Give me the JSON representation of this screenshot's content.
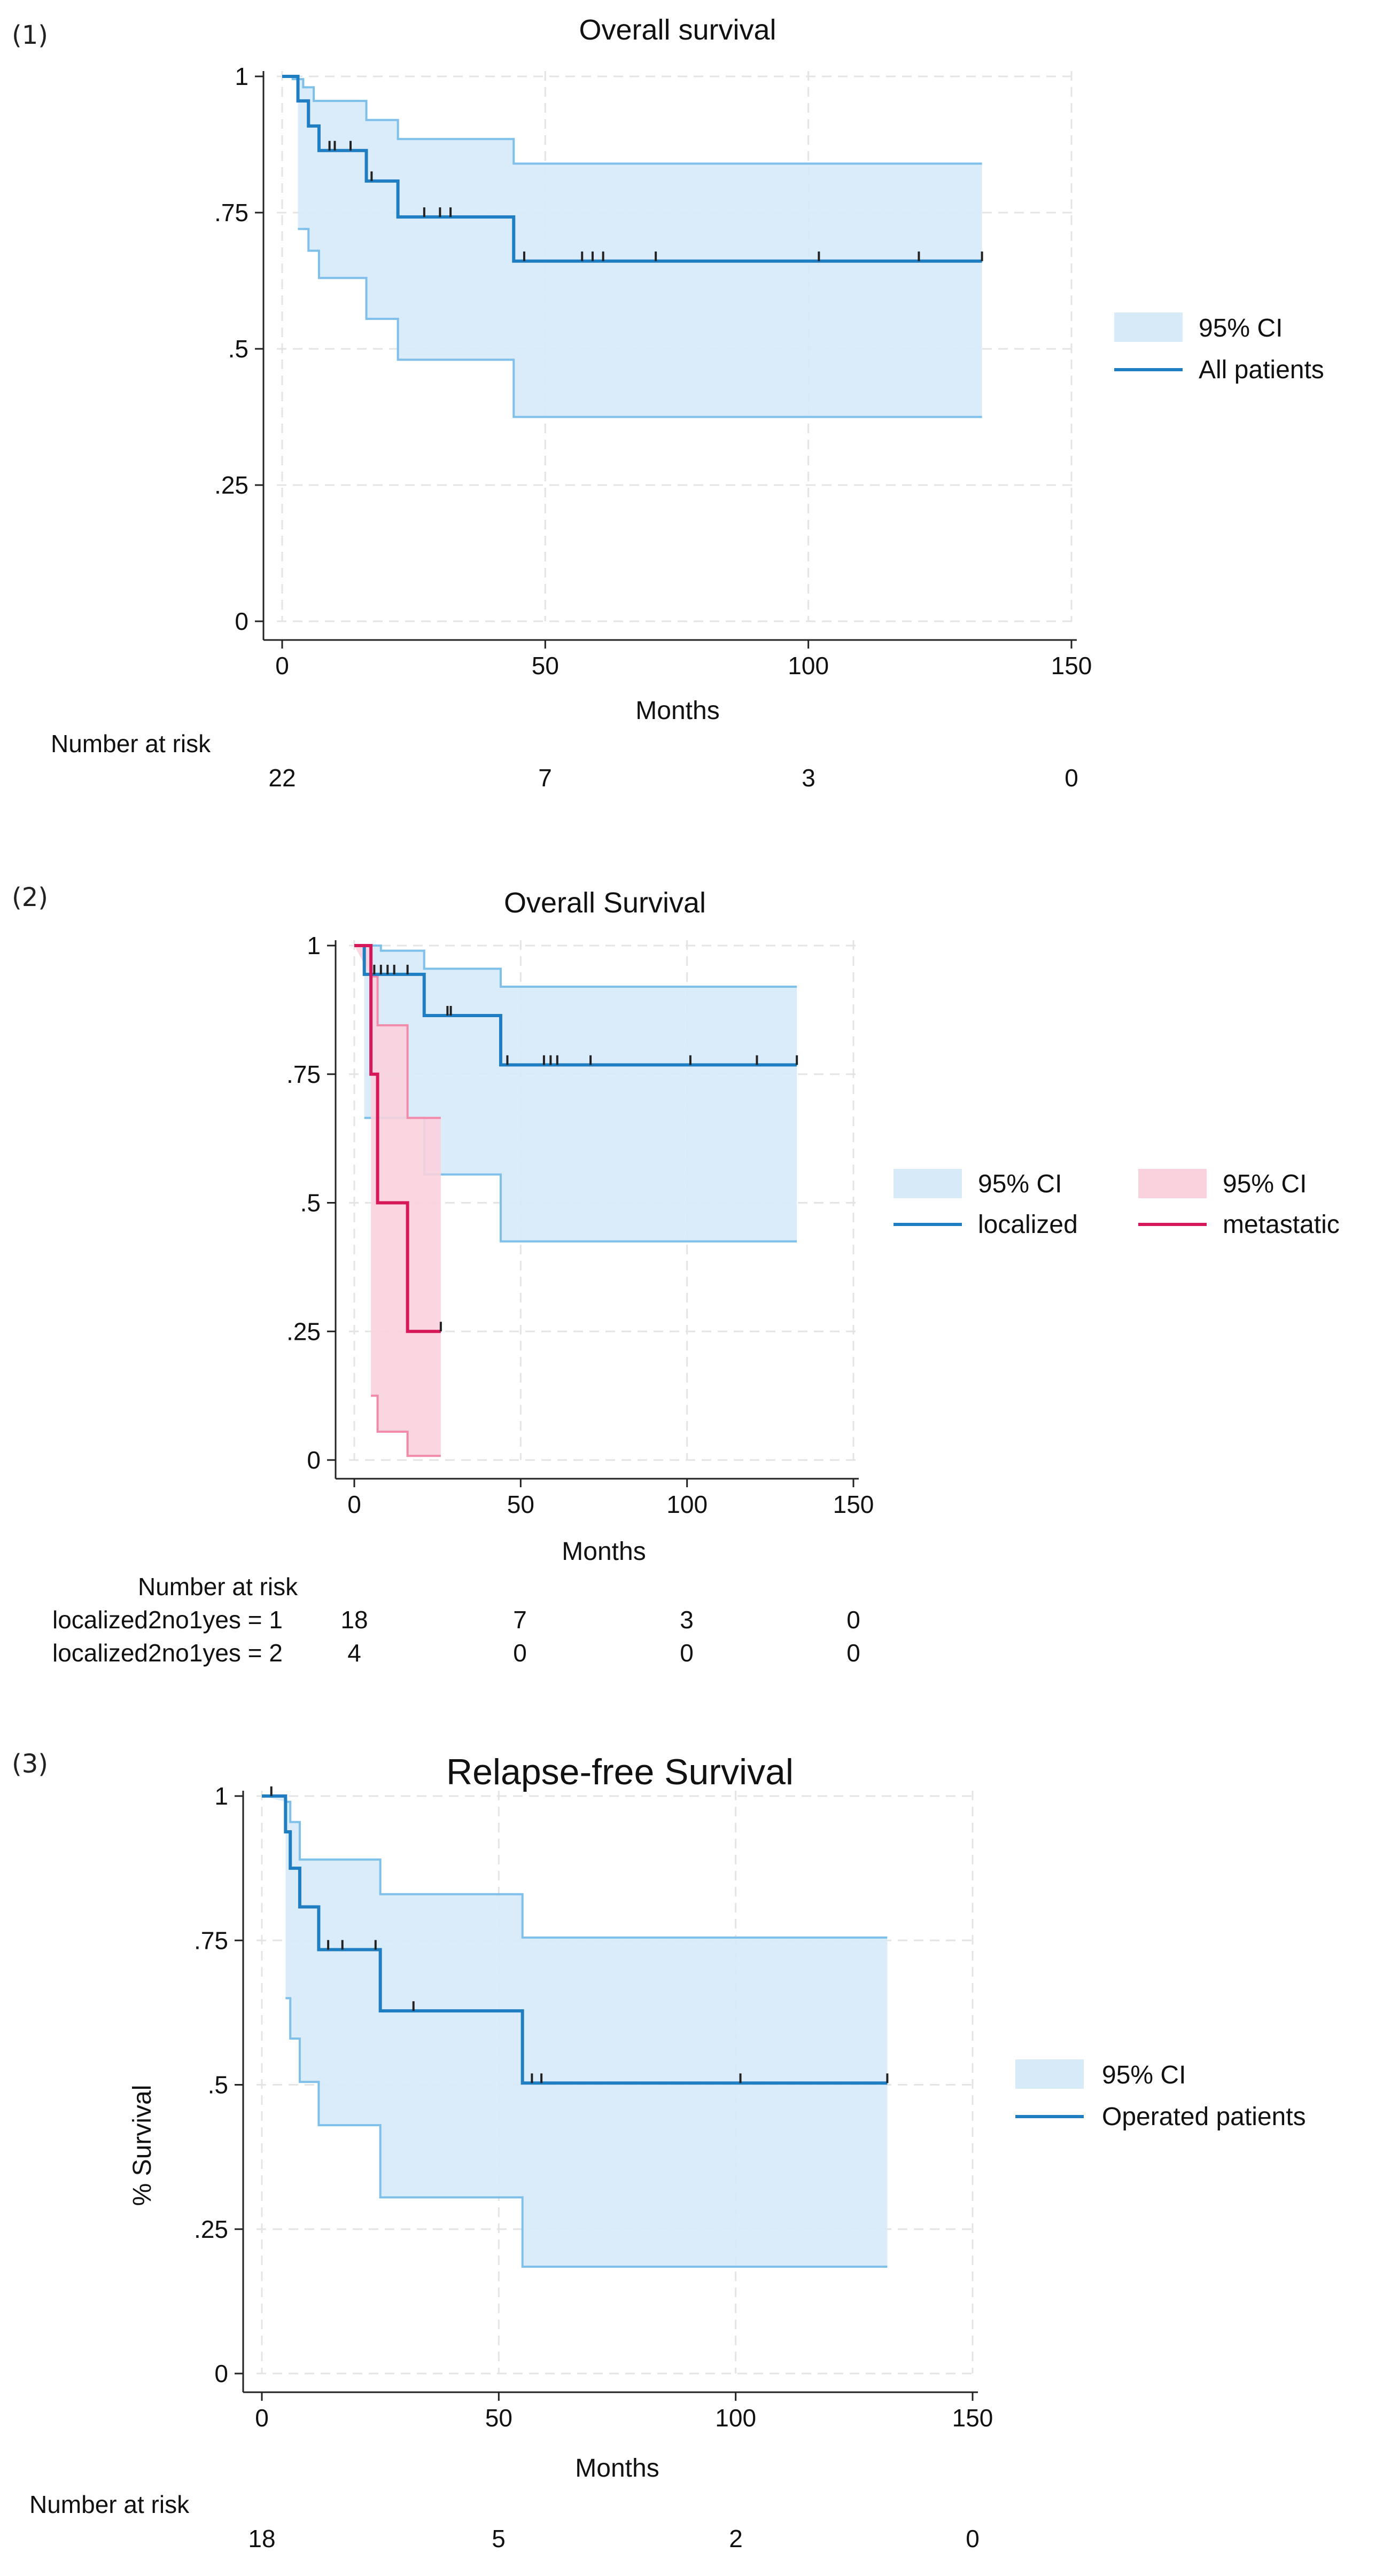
{
  "colors": {
    "blue_line": "#1f7dc1",
    "blue_ci_fill": "#d6eaf8",
    "blue_ci_line": "#7ec0ea",
    "red_line": "#d6185a",
    "red_ci_fill": "#f9d2dd",
    "red_ci_line": "#f28aaa"
  },
  "chart_data": [
    {
      "panel_label": "(1)",
      "type": "line",
      "subtype": "kaplan-meier",
      "title": "Overall survival",
      "xlabel": "Months",
      "ylabel": "",
      "xlim": [
        0,
        150
      ],
      "ylim": [
        0,
        1
      ],
      "xticks": [
        0,
        50,
        100,
        150
      ],
      "yticks": [
        0,
        0.25,
        0.5,
        0.75,
        1
      ],
      "ytick_labels": [
        "0",
        ".25",
        ".5",
        ".75",
        "1"
      ],
      "grid": true,
      "legend_position": "right",
      "legend": [
        {
          "label": "95% CI",
          "kind": "ci",
          "color": "blue"
        },
        {
          "label": "All patients",
          "kind": "line",
          "color": "blue"
        }
      ],
      "series": [
        {
          "name": "All patients",
          "color": "blue",
          "x_end": 133,
          "steps": [
            [
              0,
              1
            ],
            [
              3,
              0.955
            ],
            [
              5,
              0.909
            ],
            [
              7,
              0.864
            ],
            [
              16,
              0.808
            ],
            [
              22,
              0.742
            ],
            [
              44,
              0.661
            ]
          ],
          "ci_upper": [
            [
              0,
              1
            ],
            [
              2,
              0.995
            ],
            [
              4,
              0.98
            ],
            [
              6,
              0.955
            ],
            [
              16,
              0.92
            ],
            [
              22,
              0.885
            ],
            [
              44,
              0.84
            ]
          ],
          "ci_lower": [
            [
              3,
              0.72
            ],
            [
              5,
              0.68
            ],
            [
              7,
              0.63
            ],
            [
              16,
              0.555
            ],
            [
              22,
              0.48
            ],
            [
              44,
              0.375
            ]
          ],
          "ci_start": 3,
          "censor": [
            9,
            10,
            13,
            17,
            27,
            30,
            32,
            46,
            57,
            59,
            61,
            71,
            102,
            121,
            133
          ]
        }
      ],
      "number_at_risk": {
        "header": "Number at risk",
        "rows": [
          {
            "label": "",
            "values": [
              "22",
              "7",
              "3",
              "0"
            ]
          }
        ]
      }
    },
    {
      "panel_label": "(2)",
      "type": "line",
      "subtype": "kaplan-meier",
      "title": "Overall Survival",
      "xlabel": "Months",
      "ylabel": "",
      "xlim": [
        0,
        150
      ],
      "ylim": [
        0,
        1
      ],
      "xticks": [
        0,
        50,
        100,
        150
      ],
      "yticks": [
        0,
        0.25,
        0.5,
        0.75,
        1
      ],
      "ytick_labels": [
        "0",
        ".25",
        ".5",
        ".75",
        "1"
      ],
      "grid": true,
      "legend_position": "right",
      "legend": [
        {
          "label": "95% CI",
          "kind": "ci",
          "color": "blue"
        },
        {
          "label": "95% CI",
          "kind": "ci",
          "color": "red"
        },
        {
          "label": "localized",
          "kind": "line",
          "color": "blue"
        },
        {
          "label": "metastatic",
          "kind": "line",
          "color": "red"
        }
      ],
      "series": [
        {
          "name": "localized",
          "color": "blue",
          "x_end": 133,
          "steps": [
            [
              0,
              1
            ],
            [
              3,
              0.944
            ],
            [
              21,
              0.864
            ],
            [
              44,
              0.768
            ]
          ],
          "ci_upper": [
            [
              0,
              1
            ],
            [
              8,
              0.99
            ],
            [
              21,
              0.955
            ],
            [
              44,
              0.92
            ]
          ],
          "ci_lower": [
            [
              3,
              0.665
            ],
            [
              21,
              0.555
            ],
            [
              44,
              0.425
            ]
          ],
          "ci_start": 3,
          "censor": [
            6,
            8,
            10,
            12,
            16,
            28,
            29,
            46,
            57,
            59,
            61,
            71,
            101,
            121,
            133
          ]
        },
        {
          "name": "metastatic",
          "color": "red",
          "x_end": 26,
          "steps": [
            [
              0,
              1
            ],
            [
              5,
              0.75
            ],
            [
              7,
              0.5
            ],
            [
              16,
              0.25
            ]
          ],
          "ci_upper": [
            [
              0,
              1
            ],
            [
              5,
              0.94
            ],
            [
              7,
              0.845
            ],
            [
              16,
              0.665
            ]
          ],
          "ci_lower": [
            [
              5,
              0.125
            ],
            [
              7,
              0.055
            ],
            [
              16,
              0.008
            ]
          ],
          "ci_start": 5,
          "censor": [
            26
          ]
        }
      ],
      "number_at_risk": {
        "header": "Number at risk",
        "rows": [
          {
            "label": "localized2no1yes = 1",
            "values": [
              "18",
              "7",
              "3",
              "0"
            ]
          },
          {
            "label": "localized2no1yes = 2",
            "values": [
              "4",
              "0",
              "0",
              "0"
            ]
          }
        ]
      }
    },
    {
      "panel_label": "(3)",
      "type": "line",
      "subtype": "kaplan-meier",
      "title": "Relapse-free Survival",
      "xlabel": "Months",
      "ylabel": "% Survival",
      "xlim": [
        0,
        150
      ],
      "ylim": [
        0,
        1
      ],
      "xticks": [
        0,
        50,
        100,
        150
      ],
      "yticks": [
        0,
        0.25,
        0.5,
        0.75,
        1
      ],
      "ytick_labels": [
        "0",
        ".25",
        ".5",
        ".75",
        "1"
      ],
      "grid": true,
      "legend_position": "right",
      "legend": [
        {
          "label": "95% CI",
          "kind": "ci",
          "color": "blue"
        },
        {
          "label": "Operated patients",
          "kind": "line",
          "color": "blue"
        }
      ],
      "series": [
        {
          "name": "Operated patients",
          "color": "blue",
          "x_end": 132,
          "steps": [
            [
              0,
              1
            ],
            [
              5,
              0.938
            ],
            [
              6,
              0.875
            ],
            [
              8,
              0.808
            ],
            [
              12,
              0.734
            ],
            [
              25,
              0.628
            ],
            [
              55,
              0.503
            ]
          ],
          "ci_upper": [
            [
              0,
              1
            ],
            [
              5,
              0.99
            ],
            [
              6,
              0.955
            ],
            [
              8,
              0.89
            ],
            [
              25,
              0.83
            ],
            [
              55,
              0.755
            ]
          ],
          "ci_lower": [
            [
              5,
              0.65
            ],
            [
              6,
              0.58
            ],
            [
              8,
              0.505
            ],
            [
              12,
              0.43
            ],
            [
              25,
              0.305
            ],
            [
              55,
              0.185
            ]
          ],
          "ci_start": 5,
          "censor": [
            2,
            14,
            17,
            24,
            32,
            57,
            59,
            101,
            132
          ]
        }
      ],
      "number_at_risk": {
        "header": "Number at risk",
        "rows": [
          {
            "label": "",
            "values": [
              "18",
              "5",
              "2",
              "0"
            ]
          }
        ]
      }
    }
  ]
}
